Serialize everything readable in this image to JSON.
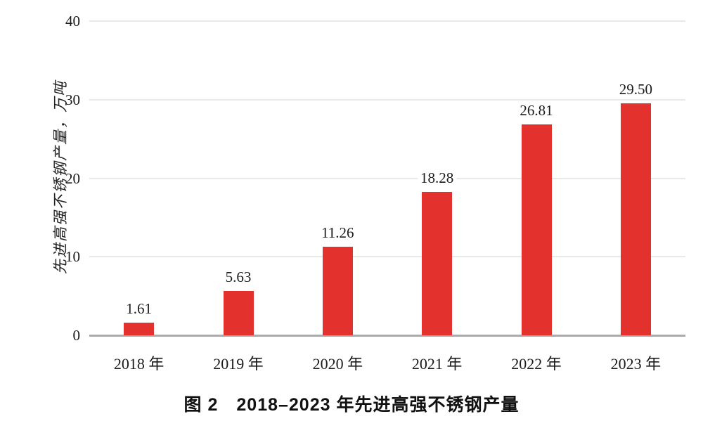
{
  "chart_data": {
    "type": "bar",
    "categories": [
      "2018 年",
      "2019 年",
      "2020 年",
      "2021 年",
      "2022 年",
      "2023 年"
    ],
    "values": [
      1.61,
      5.63,
      11.26,
      18.28,
      26.81,
      29.5
    ],
    "value_labels": [
      "1.61",
      "5.63",
      "11.26",
      "18.28",
      "26.81",
      "29.50"
    ],
    "title": "",
    "xlabel": "",
    "ylabel": "先进高强不锈钢产量，万吨",
    "yticks": [
      0,
      10,
      20,
      30,
      40
    ],
    "ylim": [
      0,
      40
    ],
    "grid": true,
    "legend": "none",
    "bar_color": "#e3322d",
    "caption": "图 2　2018–2023 年先进高强不锈钢产量"
  }
}
